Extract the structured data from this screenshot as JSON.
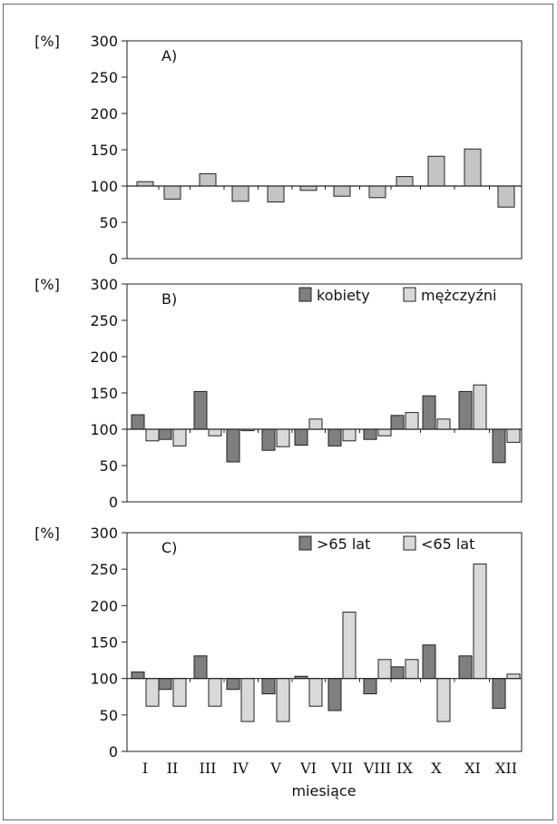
{
  "chart_data": {
    "type": "bar",
    "categories": [
      "I",
      "II",
      "III",
      "IV",
      "V",
      "VI",
      "VII",
      "VIII",
      "IX",
      "X",
      "XI",
      "XII"
    ],
    "xlabel": "miesiące",
    "ylabel": "[%]",
    "ylim": [
      0,
      300
    ],
    "yticks": [
      0,
      50,
      100,
      150,
      200,
      250,
      300
    ],
    "baseline": 100,
    "panels": [
      {
        "label": "A)",
        "series": [
          {
            "name": "",
            "color": "#c4c4c4",
            "values": [
              106,
              82,
              117,
              79,
              78,
              94,
              86,
              84,
              113,
              141,
              151,
              71
            ]
          }
        ]
      },
      {
        "label": "B)",
        "legend": "top-right",
        "series": [
          {
            "name": "kobiety",
            "color": "#7f7f7f",
            "values": [
              120,
              86,
              152,
              55,
              71,
              78,
              77,
              86,
              119,
              146,
              152,
              54
            ]
          },
          {
            "name": "mężczyźni",
            "color": "#d9d9d9",
            "values": [
              84,
              77,
              91,
              98,
              76,
              114,
              84,
              91,
              123,
              114,
              161,
              82
            ]
          }
        ]
      },
      {
        "label": "C)",
        "legend": "top-right",
        "series": [
          {
            "name": ">65 lat",
            "color": "#7f7f7f",
            "values": [
              109,
              85,
              131,
              85,
              79,
              103,
              56,
              79,
              116,
              146,
              131,
              59
            ]
          },
          {
            "name": "<65 lat",
            "color": "#d9d9d9",
            "values": [
              62,
              62,
              62,
              41,
              41,
              62,
              191,
              126,
              126,
              41,
              257,
              106
            ]
          }
        ]
      }
    ]
  }
}
